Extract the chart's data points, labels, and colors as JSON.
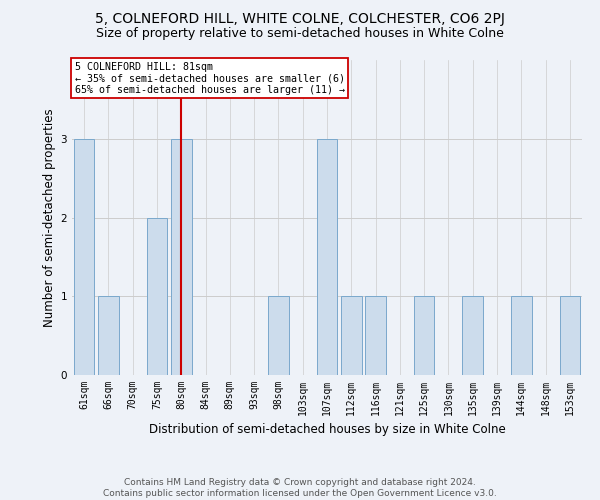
{
  "title": "5, COLNEFORD HILL, WHITE COLNE, COLCHESTER, CO6 2PJ",
  "subtitle": "Size of property relative to semi-detached houses in White Colne",
  "xlabel": "Distribution of semi-detached houses by size in White Colne",
  "ylabel": "Number of semi-detached properties",
  "categories": [
    "61sqm",
    "66sqm",
    "70sqm",
    "75sqm",
    "80sqm",
    "84sqm",
    "89sqm",
    "93sqm",
    "98sqm",
    "103sqm",
    "107sqm",
    "112sqm",
    "116sqm",
    "121sqm",
    "125sqm",
    "130sqm",
    "135sqm",
    "139sqm",
    "144sqm",
    "148sqm",
    "153sqm"
  ],
  "values": [
    3,
    1,
    0,
    2,
    3,
    0,
    0,
    0,
    1,
    0,
    3,
    1,
    1,
    0,
    1,
    0,
    1,
    0,
    1,
    0,
    1
  ],
  "bar_color": "#ccdcec",
  "bar_edge_color": "#7aa8cc",
  "highlight_index": 4,
  "highlight_line_color": "#cc0000",
  "annotation_text": "5 COLNEFORD HILL: 81sqm\n← 35% of semi-detached houses are smaller (6)\n65% of semi-detached houses are larger (11) →",
  "annotation_box_color": "#ffffff",
  "annotation_box_edge": "#cc0000",
  "footer": "Contains HM Land Registry data © Crown copyright and database right 2024.\nContains public sector information licensed under the Open Government Licence v3.0.",
  "ylim": [
    0,
    4
  ],
  "yticks": [
    0,
    1,
    2,
    3,
    4
  ],
  "background_color": "#eef2f8",
  "grid_color": "#cccccc",
  "title_fontsize": 10,
  "subtitle_fontsize": 9,
  "axis_label_fontsize": 8.5,
  "tick_fontsize": 7,
  "footer_fontsize": 6.5
}
